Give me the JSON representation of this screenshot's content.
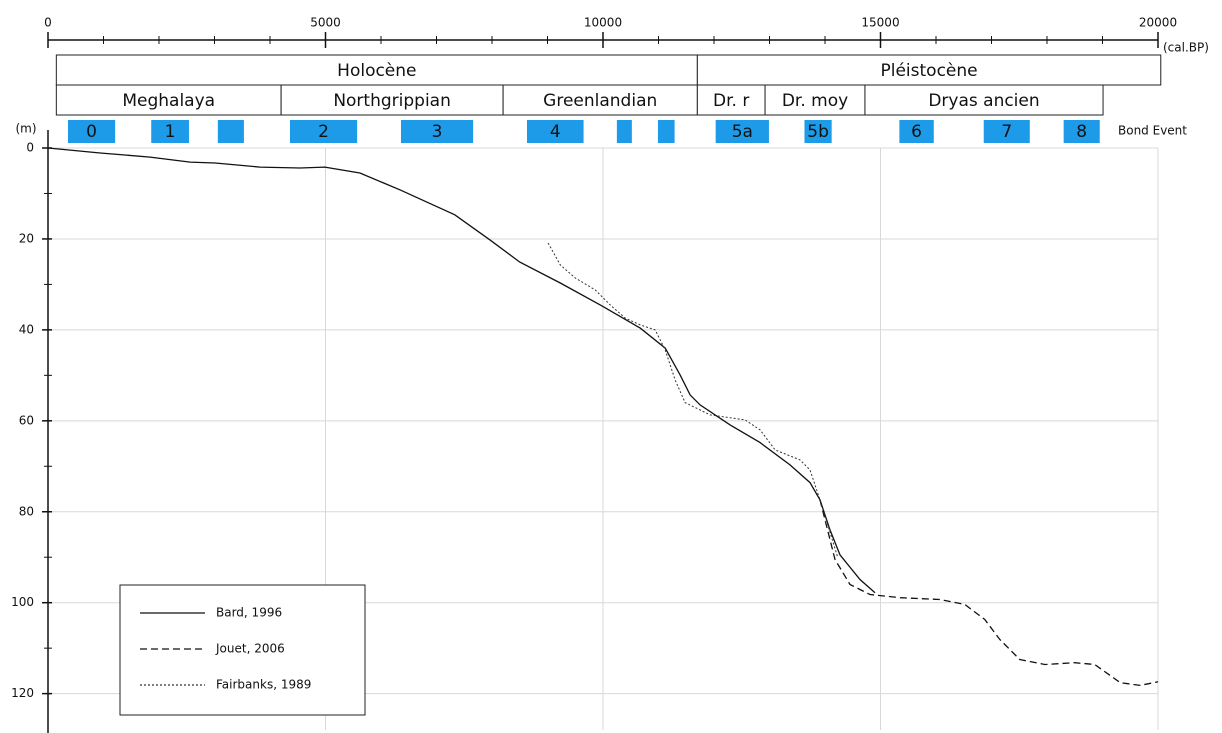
{
  "chart_data": {
    "type": "line",
    "x_label": "(cal.BP)",
    "y_label": "(m)",
    "xlim": [
      0,
      20000
    ],
    "xticks": [
      0,
      5000,
      10000,
      15000,
      20000
    ],
    "xminorticks": [
      1000,
      2000,
      3000,
      4000,
      6000,
      7000,
      8000,
      9000,
      11000,
      12000,
      13000,
      14000,
      16000,
      17000,
      18000,
      19000
    ],
    "ylim": [
      0,
      128
    ],
    "y_inverted": true,
    "yticks": [
      0,
      20,
      40,
      60,
      80,
      100,
      120
    ],
    "yminorticks": [
      10,
      30,
      50,
      70,
      90,
      110
    ],
    "grid": true,
    "legend": "lower left",
    "periods": [
      {
        "name": "Holocène",
        "start": 150,
        "end": 11700
      },
      {
        "name": "Pléistocène",
        "start": 11700,
        "end": 20050
      }
    ],
    "subperiods": [
      {
        "name": "Meghalaya",
        "start": 150,
        "end": 4200
      },
      {
        "name": "Northgrippian",
        "start": 4200,
        "end": 8200
      },
      {
        "name": "Greenlandian",
        "start": 8200,
        "end": 11700
      },
      {
        "name": "Dr. r",
        "start": 11700,
        "end": 12920
      },
      {
        "name": "Dr. moy",
        "start": 12920,
        "end": 14720
      },
      {
        "name": "Dryas ancien",
        "start": 14720,
        "end": 19010
      }
    ],
    "bond_events": {
      "label": "Bond Event",
      "color": "#1e9be8",
      "events": [
        {
          "label": "0",
          "start": 360,
          "end": 1210
        },
        {
          "label": "1",
          "start": 1860,
          "end": 2540
        },
        {
          "label": null,
          "start": 3060,
          "end": 3530
        },
        {
          "label": "2",
          "start": 4360,
          "end": 5570
        },
        {
          "label": "3",
          "start": 6360,
          "end": 7660
        },
        {
          "label": "4",
          "start": 8630,
          "end": 9650
        },
        {
          "label": null,
          "start": 10250,
          "end": 10520
        },
        {
          "label": null,
          "start": 10990,
          "end": 11290
        },
        {
          "label": "5a",
          "start": 12030,
          "end": 12990
        },
        {
          "label": "5b",
          "start": 13630,
          "end": 14120
        },
        {
          "label": "6",
          "start": 15340,
          "end": 15960
        },
        {
          "label": "7",
          "start": 16860,
          "end": 17690
        },
        {
          "label": "8",
          "start": 18300,
          "end": 18950
        }
      ]
    },
    "series": [
      {
        "name": "Bard, 1996",
        "color": "#111111",
        "dash": "solid",
        "x": [
          0,
          940,
          1840,
          2560,
          3010,
          3820,
          4540,
          4990,
          5620,
          6340,
          7330,
          7960,
          8500,
          9230,
          9950,
          10670,
          11120,
          11390,
          11570,
          11750,
          12290,
          12830,
          13370,
          13730,
          13910,
          14090,
          14270,
          14630,
          14900
        ],
        "values": [
          0,
          1.1,
          2,
          3.1,
          3.3,
          4.2,
          4.4,
          4.2,
          5.5,
          9.2,
          14.7,
          20.2,
          25.1,
          29.7,
          34.5,
          39.6,
          44,
          49.9,
          54.3,
          56.5,
          60.9,
          64.8,
          69.7,
          73.6,
          77.4,
          84,
          89.5,
          94.9,
          97.8
        ]
      },
      {
        "name": "Jouet, 2006",
        "color": "#111111",
        "dash": "dashed",
        "x": [
          13910,
          14180,
          14450,
          14810,
          15350,
          16070,
          16520,
          16880,
          17150,
          17510,
          17960,
          18500,
          18860,
          19320,
          19680,
          20000
        ],
        "values": [
          77.4,
          90.5,
          96,
          98.2,
          98.9,
          99.3,
          100.4,
          103.7,
          108.1,
          112.5,
          113.6,
          113.2,
          113.6,
          117.6,
          118.2,
          117.4
        ]
      },
      {
        "name": "Fairbanks, 1989",
        "color": "#333333",
        "dash": "dotted",
        "x": [
          9010,
          9230,
          9500,
          9860,
          10130,
          10400,
          10670,
          10940,
          11120,
          11300,
          11480,
          11930,
          12560,
          12830,
          13100,
          13550,
          13730,
          13910,
          14230
        ],
        "values": [
          20.9,
          25.7,
          28.6,
          31.2,
          34.5,
          37.4,
          38.9,
          40,
          44.4,
          51,
          56,
          58.7,
          59.8,
          62,
          66.4,
          68.6,
          70.8,
          77.4,
          90.1
        ]
      }
    ]
  }
}
